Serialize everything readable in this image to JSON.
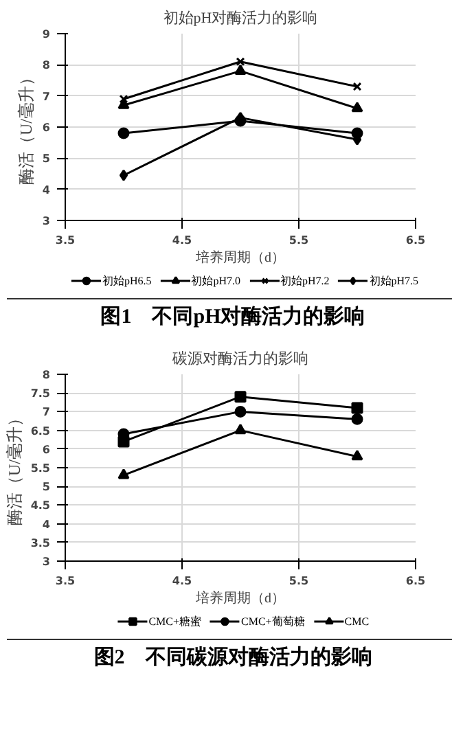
{
  "chart_data": [
    {
      "type": "line",
      "title": "初始pH对酶活力的影响",
      "xlabel": "培养周期（d）",
      "ylabel": "酶活（U/毫升）",
      "x": [
        4,
        5,
        6
      ],
      "series": [
        {
          "name": "初始pH6.5",
          "color": "#000000",
          "marker": "circle",
          "values": [
            5.8,
            6.2,
            5.8
          ]
        },
        {
          "name": "初始pH7.0",
          "color": "#000000",
          "marker": "triangle",
          "values": [
            6.7,
            7.8,
            6.6
          ]
        },
        {
          "name": "初始pH7.2",
          "color": "#000000",
          "marker": "cross",
          "values": [
            6.9,
            8.1,
            7.3
          ]
        },
        {
          "name": "初始pH7.5",
          "color": "#000000",
          "marker": "diamond",
          "values": [
            4.45,
            6.3,
            5.6
          ]
        }
      ],
      "xlim": [
        3.5,
        6.5
      ],
      "xticks": [
        3.5,
        4.5,
        5.5,
        6.5
      ],
      "ylim": [
        3,
        9
      ],
      "yticks": [
        3,
        4,
        5,
        6,
        7,
        8,
        9
      ],
      "grid": true,
      "legend": "bottom",
      "annotations": [
        "图1　不同pH对酶活力的影响"
      ]
    },
    {
      "type": "line",
      "title": "碳源对酶活力的影响",
      "xlabel": "培养周期（d）",
      "ylabel": "酶活（U/毫升）",
      "x": [
        4,
        5,
        6
      ],
      "series": [
        {
          "name": "CMC+糖蜜",
          "color": "#000000",
          "marker": "square",
          "values": [
            6.2,
            7.4,
            7.1
          ]
        },
        {
          "name": "CMC+葡萄糖",
          "color": "#000000",
          "marker": "circle",
          "values": [
            6.4,
            7.0,
            6.8
          ]
        },
        {
          "name": "CMC",
          "color": "#000000",
          "marker": "triangle",
          "values": [
            5.3,
            6.5,
            5.8
          ]
        }
      ],
      "xlim": [
        3.5,
        6.5
      ],
      "xticks": [
        3.5,
        4.5,
        5.5,
        6.5
      ],
      "ylim": [
        3,
        8
      ],
      "yticks": [
        3,
        3.5,
        4,
        4.5,
        5,
        5.5,
        6,
        6.5,
        7,
        7.5,
        8
      ],
      "grid": true,
      "legend": "bottom",
      "annotations": [
        "图2　不同碳源对酶活力的影响"
      ]
    }
  ]
}
